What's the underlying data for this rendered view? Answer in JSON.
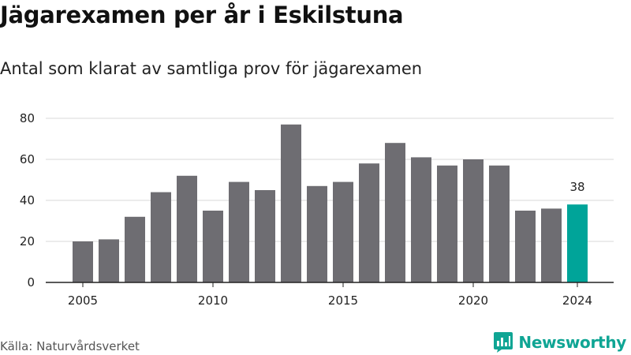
{
  "title": "Jägarexamen per år i Eskilstuna",
  "subtitle": "Antal som klarat av samtliga prov för jägarexamen",
  "source": "Källa: Naturvårdsverket",
  "brand": {
    "name": "Newsworthy",
    "icon": "bar-chart-logo-icon",
    "color": "#0fa594"
  },
  "colors": {
    "bar": "#6e6d72",
    "highlight": "#00a499",
    "grid": "#d9d9d9",
    "axis": "#222222"
  },
  "chart_data": {
    "type": "bar",
    "x": [
      2005,
      2006,
      2007,
      2008,
      2009,
      2010,
      2011,
      2012,
      2013,
      2014,
      2015,
      2016,
      2017,
      2018,
      2019,
      2020,
      2021,
      2022,
      2023,
      2024
    ],
    "values": [
      20,
      21,
      32,
      44,
      52,
      35,
      49,
      45,
      77,
      47,
      49,
      58,
      68,
      61,
      57,
      60,
      57,
      35,
      36,
      38
    ],
    "highlight": 2024,
    "data_labels": [
      {
        "x": 2024,
        "text": "38"
      }
    ],
    "x_ticks": [
      "2005",
      "2010",
      "2015",
      "2020",
      "2024"
    ],
    "y_ticks": [
      "0",
      "20",
      "40",
      "60",
      "80"
    ],
    "ylim": [
      0,
      80
    ],
    "grid": true,
    "legend": false
  }
}
